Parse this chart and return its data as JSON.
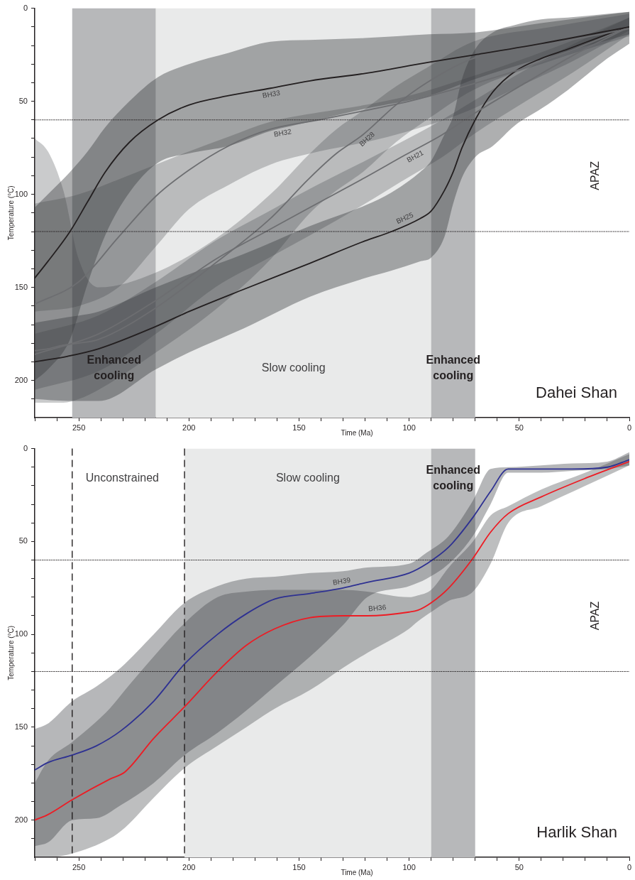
{
  "chart_data": [
    {
      "type": "line",
      "title": "Dahei Shan",
      "xlabel": "Time (Ma)",
      "ylabel": "Temperature (°C)",
      "xlim": [
        270,
        0
      ],
      "ylim": [
        220,
        0
      ],
      "xticks": [
        {
          "value": 270,
          "label": null
        },
        {
          "value": 260,
          "label": null
        },
        250,
        {
          "value": 240,
          "label": null
        },
        {
          "value": 230,
          "label": null
        },
        {
          "value": 220,
          "label": null
        },
        {
          "value": 210,
          "label": null
        },
        200,
        {
          "value": 190,
          "label": null
        },
        {
          "value": 180,
          "label": null
        },
        {
          "value": 170,
          "label": null
        },
        {
          "value": 160,
          "label": null
        },
        150,
        {
          "value": 140,
          "label": null
        },
        {
          "value": 130,
          "label": null
        },
        {
          "value": 120,
          "label": null
        },
        {
          "value": 110,
          "label": null
        },
        100,
        {
          "value": 90,
          "label": null
        },
        {
          "value": 80,
          "label": null
        },
        {
          "value": 70,
          "label": null
        },
        {
          "value": 60,
          "label": null
        },
        50,
        {
          "value": 40,
          "label": null
        },
        {
          "value": 30,
          "label": null
        },
        {
          "value": 20,
          "label": null
        },
        {
          "value": 10,
          "label": null
        },
        0
      ],
      "yticks": [
        0,
        {
          "value": 10,
          "label": null
        },
        {
          "value": 20,
          "label": null
        },
        {
          "value": 30,
          "label": null
        },
        {
          "value": 40,
          "label": null
        },
        50,
        {
          "value": 60,
          "label": null
        },
        {
          "value": 70,
          "label": null
        },
        {
          "value": 80,
          "label": null
        },
        {
          "value": 90,
          "label": null
        },
        100,
        {
          "value": 110,
          "label": null
        },
        {
          "value": 120,
          "label": null
        },
        {
          "value": 130,
          "label": null
        },
        {
          "value": 140,
          "label": null
        },
        150,
        {
          "value": 160,
          "label": null
        },
        {
          "value": 170,
          "label": null
        },
        {
          "value": 180,
          "label": null
        },
        {
          "value": 190,
          "label": null
        },
        200,
        {
          "value": 210,
          "label": null
        }
      ],
      "series": [
        {
          "name": "BH33",
          "color": "#231f20",
          "x": [
            270,
            264,
            254,
            246,
            238,
            227,
            214,
            200,
            182,
            163,
            145,
            120,
            91,
            70,
            40,
            0
          ],
          "values": [
            145,
            136,
            120,
            104,
            88,
            72,
            60,
            52,
            47,
            43,
            39,
            35,
            29,
            25,
            19,
            10
          ],
          "lower": [
            107,
            100,
            88,
            77,
            64,
            50,
            37,
            30,
            24,
            18,
            17,
            16,
            14,
            13,
            8,
            2
          ],
          "upper": [
            200,
            194,
            178,
            148,
            122,
            99,
            83,
            78,
            74,
            66,
            61,
            54,
            47,
            38,
            27,
            14
          ]
        },
        {
          "name": "BH32",
          "color": "#6d6e71",
          "x": [
            270,
            250,
            232,
            215,
            200,
            182,
            163,
            141,
            120,
            100,
            75,
            50,
            25,
            0
          ],
          "values": [
            159,
            147,
            123,
            101,
            87,
            74,
            65,
            60,
            55,
            50,
            42,
            33,
            22,
            10
          ],
          "lower": [
            105,
            100,
            92,
            84,
            77,
            69,
            61,
            56,
            52,
            47,
            38,
            28,
            17,
            5
          ],
          "upper": [
            163,
            160,
            150,
            128,
            108,
            95,
            84,
            77,
            72,
            66,
            56,
            42,
            28,
            12
          ]
        },
        {
          "name": "BH28",
          "color": "#6d6e71",
          "x": [
            270,
            264,
            257,
            250,
            241,
            215,
            188,
            163,
            145,
            133,
            121,
            106,
            92,
            71,
            35,
            0
          ],
          "values": [
            184,
            183,
            181,
            180,
            178,
            161,
            137,
            113,
            91,
            78,
            68,
            52,
            40,
            27,
            19,
            11
          ],
          "lower": [
            70,
            77,
            98,
            135,
            150,
            142,
            124,
            100,
            78,
            65,
            55,
            42,
            32,
            18,
            10,
            3
          ],
          "upper": [
            212,
            212,
            212,
            210,
            205,
            185,
            162,
            135,
            110,
            98,
            88,
            72,
            60,
            44,
            28,
            15
          ]
        },
        {
          "name": "BH21",
          "color": "#6d6e71",
          "x": [
            270,
            241,
            215,
            188,
            165,
            145,
            120,
            102,
            85,
            71,
            47,
            25,
            0
          ],
          "values": [
            186,
            175,
            157,
            135,
            120,
            107,
            91,
            79,
            68,
            57,
            40,
            25,
            10
          ],
          "lower": [
            175,
            165,
            147,
            125,
            110,
            97,
            82,
            71,
            60,
            50,
            33,
            19,
            5
          ],
          "upper": [
            205,
            195,
            175,
            150,
            135,
            122,
            105,
            92,
            80,
            68,
            50,
            34,
            14
          ]
        },
        {
          "name": "BH25",
          "color": "#231f20",
          "x": [
            270,
            255,
            241,
            215,
            200,
            175,
            145,
            120,
            108,
            95,
            90,
            84,
            80,
            76,
            70,
            62,
            52,
            40,
            28,
            10,
            0
          ],
          "values": [
            190,
            187,
            183,
            171,
            163,
            151,
            137,
            125,
            120,
            113,
            109,
            98,
            88,
            75,
            60,
            45,
            34,
            27,
            22,
            14,
            10
          ],
          "lower": [
            169,
            166,
            163,
            150,
            143,
            132,
            117,
            106,
            99,
            88,
            82,
            68,
            58,
            38,
            22,
            13,
            9,
            6,
            5,
            3,
            2
          ],
          "upper": [
            210,
            211,
            211,
            194,
            185,
            172,
            155,
            145,
            141,
            136,
            134,
            123,
            105,
            91,
            80,
            74,
            63,
            54,
            44,
            27,
            19
          ]
        }
      ],
      "bands": [
        {
          "axis": "x",
          "from": 253,
          "to": 215,
          "label": "Enhanced cooling",
          "color": "#b7b8ba"
        },
        {
          "axis": "x",
          "from": 215,
          "to": 90,
          "label": "Slow cooling",
          "color": "#e9eaea"
        },
        {
          "axis": "x",
          "from": 90,
          "to": 70,
          "label": "Enhanced cooling",
          "color": "#b7b8ba"
        }
      ],
      "ref_lines": [
        {
          "axis": "y",
          "value": 60,
          "line_style": "dotted"
        },
        {
          "axis": "y",
          "value": 120,
          "line_style": "dotted"
        }
      ],
      "annotations": [
        "APAZ"
      ]
    },
    {
      "type": "line",
      "title": "Harlik Shan",
      "xlabel": "Time (Ma)",
      "ylabel": "Temperature (°C)",
      "xlim": [
        270,
        0
      ],
      "ylim": [
        220,
        0
      ],
      "xticks": [
        {
          "value": 270,
          "label": null
        },
        {
          "value": 260,
          "label": null
        },
        250,
        {
          "value": 240,
          "label": null
        },
        {
          "value": 230,
          "label": null
        },
        {
          "value": 220,
          "label": null
        },
        {
          "value": 210,
          "label": null
        },
        200,
        {
          "value": 190,
          "label": null
        },
        {
          "value": 180,
          "label": null
        },
        {
          "value": 170,
          "label": null
        },
        {
          "value": 160,
          "label": null
        },
        150,
        {
          "value": 140,
          "label": null
        },
        {
          "value": 130,
          "label": null
        },
        {
          "value": 120,
          "label": null
        },
        {
          "value": 110,
          "label": null
        },
        100,
        {
          "value": 90,
          "label": null
        },
        {
          "value": 80,
          "label": null
        },
        {
          "value": 70,
          "label": null
        },
        {
          "value": 60,
          "label": null
        },
        50,
        {
          "value": 40,
          "label": null
        },
        {
          "value": 30,
          "label": null
        },
        {
          "value": 20,
          "label": null
        },
        {
          "value": 10,
          "label": null
        },
        0
      ],
      "yticks": [
        0,
        {
          "value": 10,
          "label": null
        },
        {
          "value": 20,
          "label": null
        },
        {
          "value": 30,
          "label": null
        },
        {
          "value": 40,
          "label": null
        },
        50,
        {
          "value": 60,
          "label": null
        },
        {
          "value": 70,
          "label": null
        },
        {
          "value": 80,
          "label": null
        },
        {
          "value": 90,
          "label": null
        },
        100,
        {
          "value": 110,
          "label": null
        },
        {
          "value": 120,
          "label": null
        },
        {
          "value": 130,
          "label": null
        },
        {
          "value": 140,
          "label": null
        },
        150,
        {
          "value": 160,
          "label": null
        },
        {
          "value": 170,
          "label": null
        },
        {
          "value": 180,
          "label": null
        },
        {
          "value": 190,
          "label": null
        },
        200,
        {
          "value": 210,
          "label": null
        }
      ],
      "series": [
        {
          "name": "BH39",
          "color": "#2e3192",
          "x": [
            270,
            264,
            253,
            242,
            231,
            216,
            202,
            187,
            174,
            161,
            145,
            130,
            119,
            100,
            92,
            82,
            71,
            63,
            55,
            40,
            26,
            10,
            0
          ],
          "values": [
            173,
            169,
            165,
            160,
            152,
            136,
            116,
            100,
            89,
            81,
            78,
            75,
            72,
            67,
            62,
            53,
            37,
            23,
            11,
            11,
            11,
            10,
            6
          ],
          "lower": [
            151,
            148,
            136,
            128,
            118,
            100,
            83,
            74,
            70,
            69,
            67,
            66,
            64,
            62,
            56,
            47,
            28,
            11,
            10,
            9,
            8,
            7,
            2
          ],
          "upper": [
            214,
            212,
            200,
            199,
            192,
            180,
            165,
            153,
            141,
            128,
            112,
            95,
            80,
            74,
            70,
            62,
            47,
            30,
            13,
            13,
            12,
            11,
            9
          ]
        },
        {
          "name": "BH36",
          "color": "#ed1c24",
          "x": [
            270,
            264,
            253,
            236,
            229,
            216,
            202,
            187,
            174,
            161,
            145,
            130,
            119,
            100,
            96,
            90,
            82,
            71,
            63,
            55,
            40,
            20,
            0
          ],
          "values": [
            200,
            197,
            189,
            178,
            174,
            156,
            139,
            120,
            106,
            97,
            91,
            90,
            90,
            88,
            87,
            83,
            75,
            59,
            45,
            35,
            26,
            16,
            7
          ],
          "lower": [
            180,
            168,
            158,
            140,
            130,
            112,
            94,
            80,
            77,
            76,
            76,
            76,
            77,
            80,
            79,
            76,
            64,
            50,
            36,
            31,
            22,
            13,
            3
          ],
          "upper": [
            220,
            220,
            218,
            210,
            204,
            188,
            172,
            160,
            150,
            140,
            130,
            118,
            110,
            97,
            93,
            88,
            82,
            77,
            62,
            40,
            31,
            20,
            9
          ]
        }
      ],
      "bands": [
        {
          "axis": "x",
          "from": 202,
          "to": 90,
          "label": "Slow cooling",
          "color": "#e9eaea"
        },
        {
          "axis": "x",
          "from": 90,
          "to": 70,
          "label": "Enhanced cooling",
          "color": "#b7b8ba"
        }
      ],
      "ref_lines": [
        {
          "axis": "x",
          "value": 253,
          "line_style": "dashed",
          "label": "Unconstrained"
        },
        {
          "axis": "x",
          "value": 202,
          "line_style": "dashed"
        },
        {
          "axis": "y",
          "value": 60,
          "line_style": "dotted"
        },
        {
          "axis": "y",
          "value": 120,
          "line_style": "dotted"
        }
      ],
      "annotations": [
        "APAZ"
      ]
    }
  ]
}
